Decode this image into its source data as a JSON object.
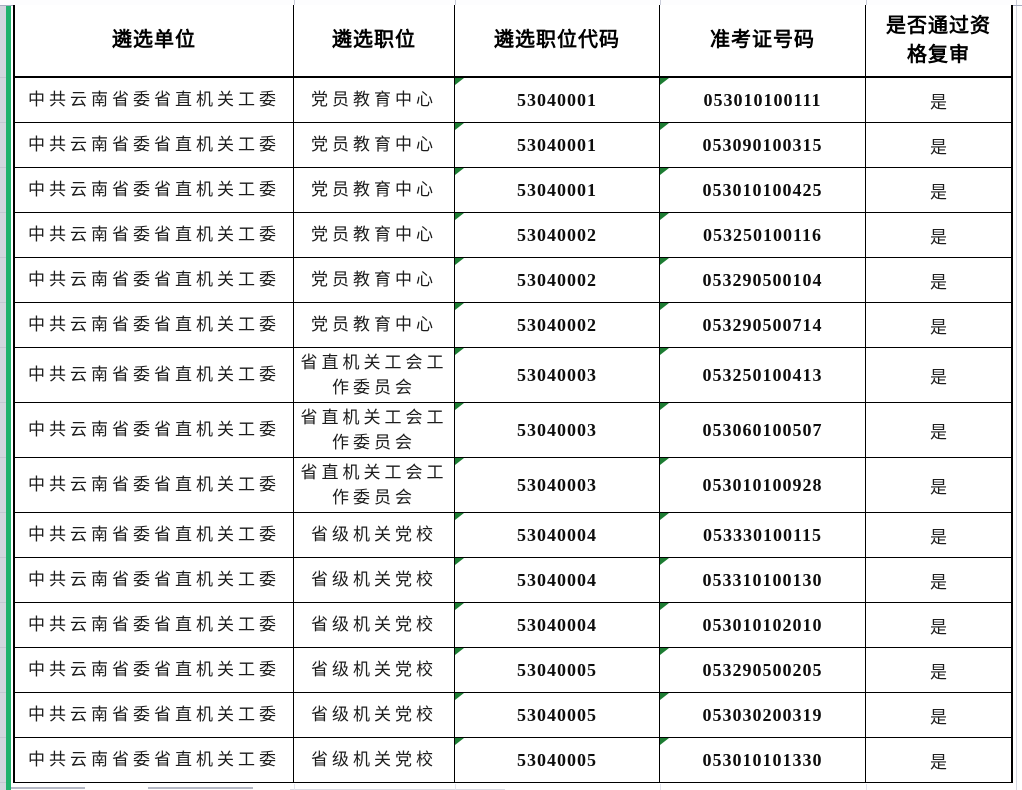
{
  "table": {
    "headers": [
      "遴选单位",
      "遴选职位",
      "遴选职位代码",
      "准考证号码",
      "是否通过资格复审"
    ],
    "rows": [
      {
        "unit": "中共云南省委省直机关工委",
        "position": "党员教育中心",
        "code": "53040001",
        "ticket": "053010100111",
        "pass": "是"
      },
      {
        "unit": "中共云南省委省直机关工委",
        "position": "党员教育中心",
        "code": "53040001",
        "ticket": "053090100315",
        "pass": "是"
      },
      {
        "unit": "中共云南省委省直机关工委",
        "position": "党员教育中心",
        "code": "53040001",
        "ticket": "053010100425",
        "pass": "是"
      },
      {
        "unit": "中共云南省委省直机关工委",
        "position": "党员教育中心",
        "code": "53040002",
        "ticket": "053250100116",
        "pass": "是"
      },
      {
        "unit": "中共云南省委省直机关工委",
        "position": "党员教育中心",
        "code": "53040002",
        "ticket": "053290500104",
        "pass": "是"
      },
      {
        "unit": "中共云南省委省直机关工委",
        "position": "党员教育中心",
        "code": "53040002",
        "ticket": "053290500714",
        "pass": "是"
      },
      {
        "unit": "中共云南省委省直机关工委",
        "position": "省直机关工会工作委员会",
        "code": "53040003",
        "ticket": "053250100413",
        "pass": "是"
      },
      {
        "unit": "中共云南省委省直机关工委",
        "position": "省直机关工会工作委员会",
        "code": "53040003",
        "ticket": "053060100507",
        "pass": "是"
      },
      {
        "unit": "中共云南省委省直机关工委",
        "position": "省直机关工会工作委员会",
        "code": "53040003",
        "ticket": "053010100928",
        "pass": "是"
      },
      {
        "unit": "中共云南省委省直机关工委",
        "position": "省级机关党校",
        "code": "53040004",
        "ticket": "053330100115",
        "pass": "是"
      },
      {
        "unit": "中共云南省委省直机关工委",
        "position": "省级机关党校",
        "code": "53040004",
        "ticket": "053310100130",
        "pass": "是"
      },
      {
        "unit": "中共云南省委省直机关工委",
        "position": "省级机关党校",
        "code": "53040004",
        "ticket": "053010102010",
        "pass": "是"
      },
      {
        "unit": "中共云南省委省直机关工委",
        "position": "省级机关党校",
        "code": "53040005",
        "ticket": "053290500205",
        "pass": "是"
      },
      {
        "unit": "中共云南省委省直机关工委",
        "position": "省级机关党校",
        "code": "53040005",
        "ticket": "053030200319",
        "pass": "是"
      },
      {
        "unit": "中共云南省委省直机关工委",
        "position": "省级机关党校",
        "code": "53040005",
        "ticket": "053010101330",
        "pass": "是"
      }
    ]
  },
  "icons": {
    "error_indicator": "number-stored-as-text-triangle"
  },
  "colors": {
    "accent_green_bar": "#20b26d",
    "error_triangle_green": "#1d7d33",
    "table_border": "#000000",
    "sheet_gridline": "#a7adc0",
    "row_header_strip": "#d3d6df"
  }
}
